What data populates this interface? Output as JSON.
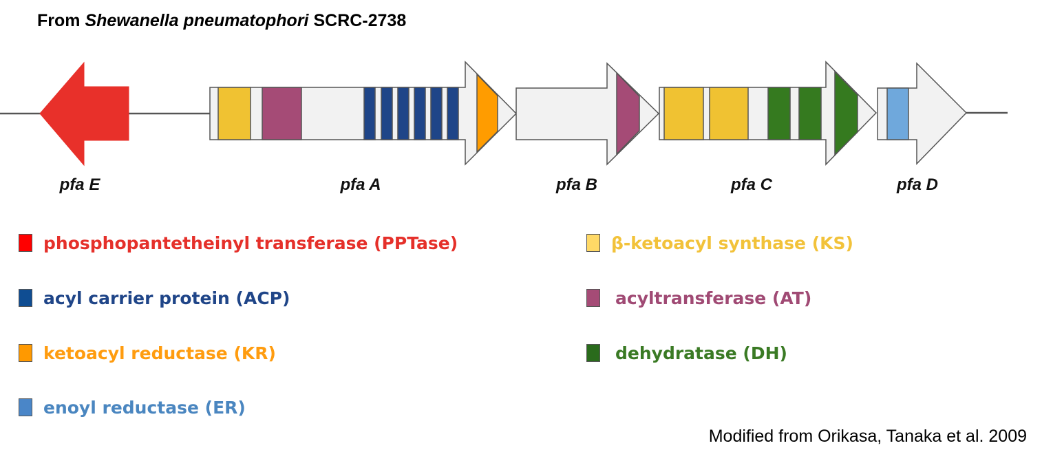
{
  "title": {
    "prefix": "From ",
    "organism": "Shewanella pneumatophori",
    "strain": " SCRC-2738"
  },
  "genes": [
    {
      "id": "pfaE",
      "label": "pfa E",
      "direction": "reverse",
      "domains": [
        "PPTase"
      ]
    },
    {
      "id": "pfaA",
      "label": "pfa A",
      "direction": "forward",
      "domains": [
        "KS",
        "AT",
        "ACP",
        "ACP",
        "ACP",
        "ACP",
        "ACP",
        "ACP",
        "KR"
      ]
    },
    {
      "id": "pfaB",
      "label": "pfa B",
      "direction": "forward",
      "domains": [
        "AT"
      ]
    },
    {
      "id": "pfaC",
      "label": "pfa C",
      "direction": "forward",
      "domains": [
        "KS",
        "KS",
        "DH",
        "DH",
        "DH"
      ]
    },
    {
      "id": "pfaD",
      "label": "pfa D",
      "direction": "forward",
      "domains": [
        "ER"
      ]
    }
  ],
  "colors": {
    "PPTase": "#e8302a",
    "PPTase_swatch": "#ff0000",
    "PPTase_text": "#e5302a",
    "KS": "#f0c232",
    "KS_swatch": "#ffd966",
    "KS_text": "#f2c23a",
    "AT": "#a54b76",
    "AT_text": "#a04a74",
    "ACP": "#1f4588",
    "ACP_swatch": "#0f4d92",
    "ACP_text": "#1f4588",
    "KR": "#ff9c00",
    "KR_swatch": "#ff9900",
    "KR_text": "#ff9c0f",
    "DH": "#357a1f",
    "DH_swatch": "#2a6b1c",
    "DH_text": "#3a7a24",
    "ER": "#6fa8dc",
    "ER_swatch": "#4a86c8",
    "ER_text": "#4a86c0",
    "gene_fill": "#f2f2f2",
    "gene_stroke": "#555555"
  },
  "legend": {
    "pptase": "phosphopantetheinyl transferase (PPTase)",
    "acp": "acyl carrier protein (ACP)",
    "kr": "ketoacyl reductase (KR)",
    "er": "enoyl reductase (ER)",
    "ks": "β-ketoacyl synthase (KS)",
    "at": "acyltransferase (AT)",
    "dh": "dehydratase (DH)"
  },
  "citation": "Modified from  Orikasa, Tanaka et al. 2009"
}
